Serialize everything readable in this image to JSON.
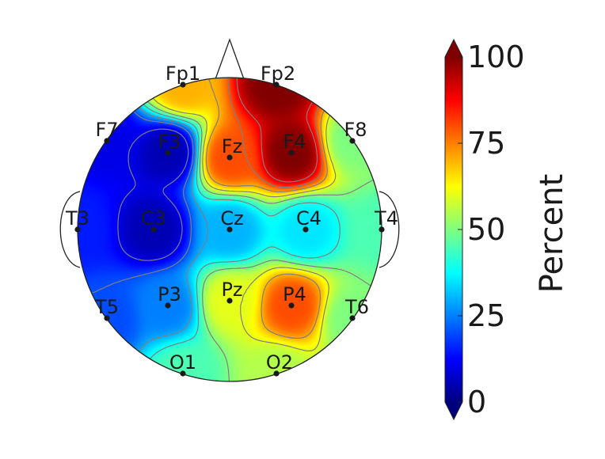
{
  "chart_data": {
    "type": "heatmap",
    "subtype": "scalp-topomap",
    "colormap": "jet",
    "value_range": [
      0,
      100
    ],
    "colorbar": {
      "label": "Percent",
      "ticks": [
        0,
        25,
        50,
        75,
        100
      ],
      "tick_labels": [
        "0",
        "25",
        "50",
        "75",
        "100"
      ],
      "extend": "both"
    },
    "electrodes": [
      {
        "name": "Fp1",
        "value": 70
      },
      {
        "name": "Fp2",
        "value": 100
      },
      {
        "name": "F7",
        "value": 10
      },
      {
        "name": "F3",
        "value": 5
      },
      {
        "name": "Fz",
        "value": 80
      },
      {
        "name": "F4",
        "value": 100
      },
      {
        "name": "F8",
        "value": 50
      },
      {
        "name": "T3",
        "value": 15
      },
      {
        "name": "C3",
        "value": 5
      },
      {
        "name": "Cz",
        "value": 30
      },
      {
        "name": "C4",
        "value": 35
      },
      {
        "name": "T4",
        "value": 45
      },
      {
        "name": "T5",
        "value": 20
      },
      {
        "name": "P3",
        "value": 25
      },
      {
        "name": "Pz",
        "value": 60
      },
      {
        "name": "P4",
        "value": 80
      },
      {
        "name": "T6",
        "value": 50
      },
      {
        "name": "O1",
        "value": 45
      },
      {
        "name": "O2",
        "value": 55
      }
    ],
    "contour_levels": [
      10,
      20,
      30,
      40,
      50,
      60,
      70,
      80,
      90
    ]
  }
}
